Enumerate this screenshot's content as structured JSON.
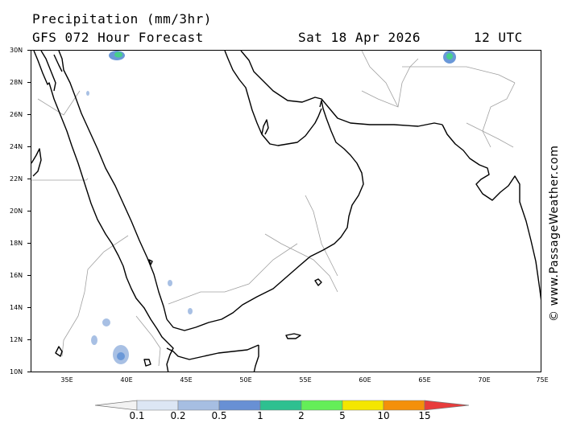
{
  "header": {
    "title": "Precipitation (mm/3hr)",
    "model": "GFS 072 Hour Forecast",
    "date": "Sat 18 Apr 2026",
    "time": "12 UTC"
  },
  "map": {
    "lat_labels": [
      "30N",
      "28N",
      "26N",
      "24N",
      "22N",
      "20N",
      "18N",
      "16N",
      "14N",
      "12N",
      "10N"
    ],
    "lon_labels": [
      "35E",
      "40E",
      "45E",
      "50E",
      "55E",
      "60E",
      "65E",
      "70E",
      "75E"
    ],
    "colors": {
      "land_line": "#000000",
      "border": "#a0a0a0",
      "light_rain": "#a8c0e4",
      "moderate_rain": "#6a98d8",
      "heavy_rain": "#46d08a"
    }
  },
  "legend": {
    "values": [
      "0.1",
      "0.2",
      "0.5",
      "1",
      "2",
      "5",
      "10",
      "15"
    ],
    "colors": [
      "#f2f2f2",
      "#dce6f4",
      "#a6bee2",
      "#6890d4",
      "#2ec090",
      "#64ee58",
      "#f4e600",
      "#f4900a",
      "#e83c3c"
    ]
  },
  "credit": "© www.PassageWeather.com"
}
